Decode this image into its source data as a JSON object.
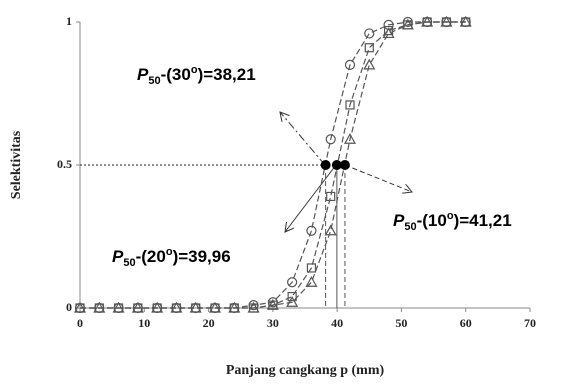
{
  "chart_data": {
    "type": "line",
    "y_label": "Selektivitas",
    "x_label": "Panjang cangkang p (mm)",
    "x": [
      0,
      3,
      6,
      9,
      12,
      15,
      18,
      21,
      24,
      27,
      30,
      33,
      36,
      39,
      42,
      45,
      48,
      51,
      54,
      57,
      60
    ],
    "series": [
      {
        "marker": "circle",
        "color": "#555555",
        "l50": 38.21,
        "label_parts": {
          "p": "P",
          "sub": "50",
          "mid": "-(30",
          "sup": "o",
          "end": ")=38,21"
        },
        "values": [
          0,
          0,
          0,
          0,
          0,
          0,
          0,
          0,
          0,
          0.01,
          0.02,
          0.09,
          0.27,
          0.59,
          0.85,
          0.96,
          0.99,
          1,
          1,
          1,
          1
        ]
      },
      {
        "marker": "square",
        "color": "#555555",
        "l50": 39.96,
        "label_parts": {
          "p": "P",
          "sub": "50",
          "mid": "-(20",
          "sup": "o",
          "end": ")=39,96"
        },
        "values": [
          0,
          0,
          0,
          0,
          0,
          0,
          0,
          0,
          0,
          0,
          0.01,
          0.04,
          0.14,
          0.39,
          0.71,
          0.91,
          0.97,
          0.99,
          1,
          1,
          1
        ]
      },
      {
        "marker": "triangle",
        "color": "#555555",
        "l50": 41.21,
        "label_parts": {
          "p": "P",
          "sub": "50",
          "mid": "-(10",
          "sup": "o",
          "end": ")=41,21"
        },
        "values": [
          0,
          0,
          0,
          0,
          0,
          0,
          0,
          0,
          0,
          0,
          0.01,
          0.02,
          0.09,
          0.27,
          0.59,
          0.85,
          0.96,
          0.99,
          1,
          1,
          1
        ]
      }
    ],
    "selection_level": 0.5,
    "xlim": [
      0,
      70
    ],
    "xticks": [
      0,
      10,
      20,
      30,
      40,
      50,
      60,
      70
    ],
    "ylim": [
      0,
      1
    ],
    "yticks": [
      0,
      0.5,
      1
    ]
  }
}
